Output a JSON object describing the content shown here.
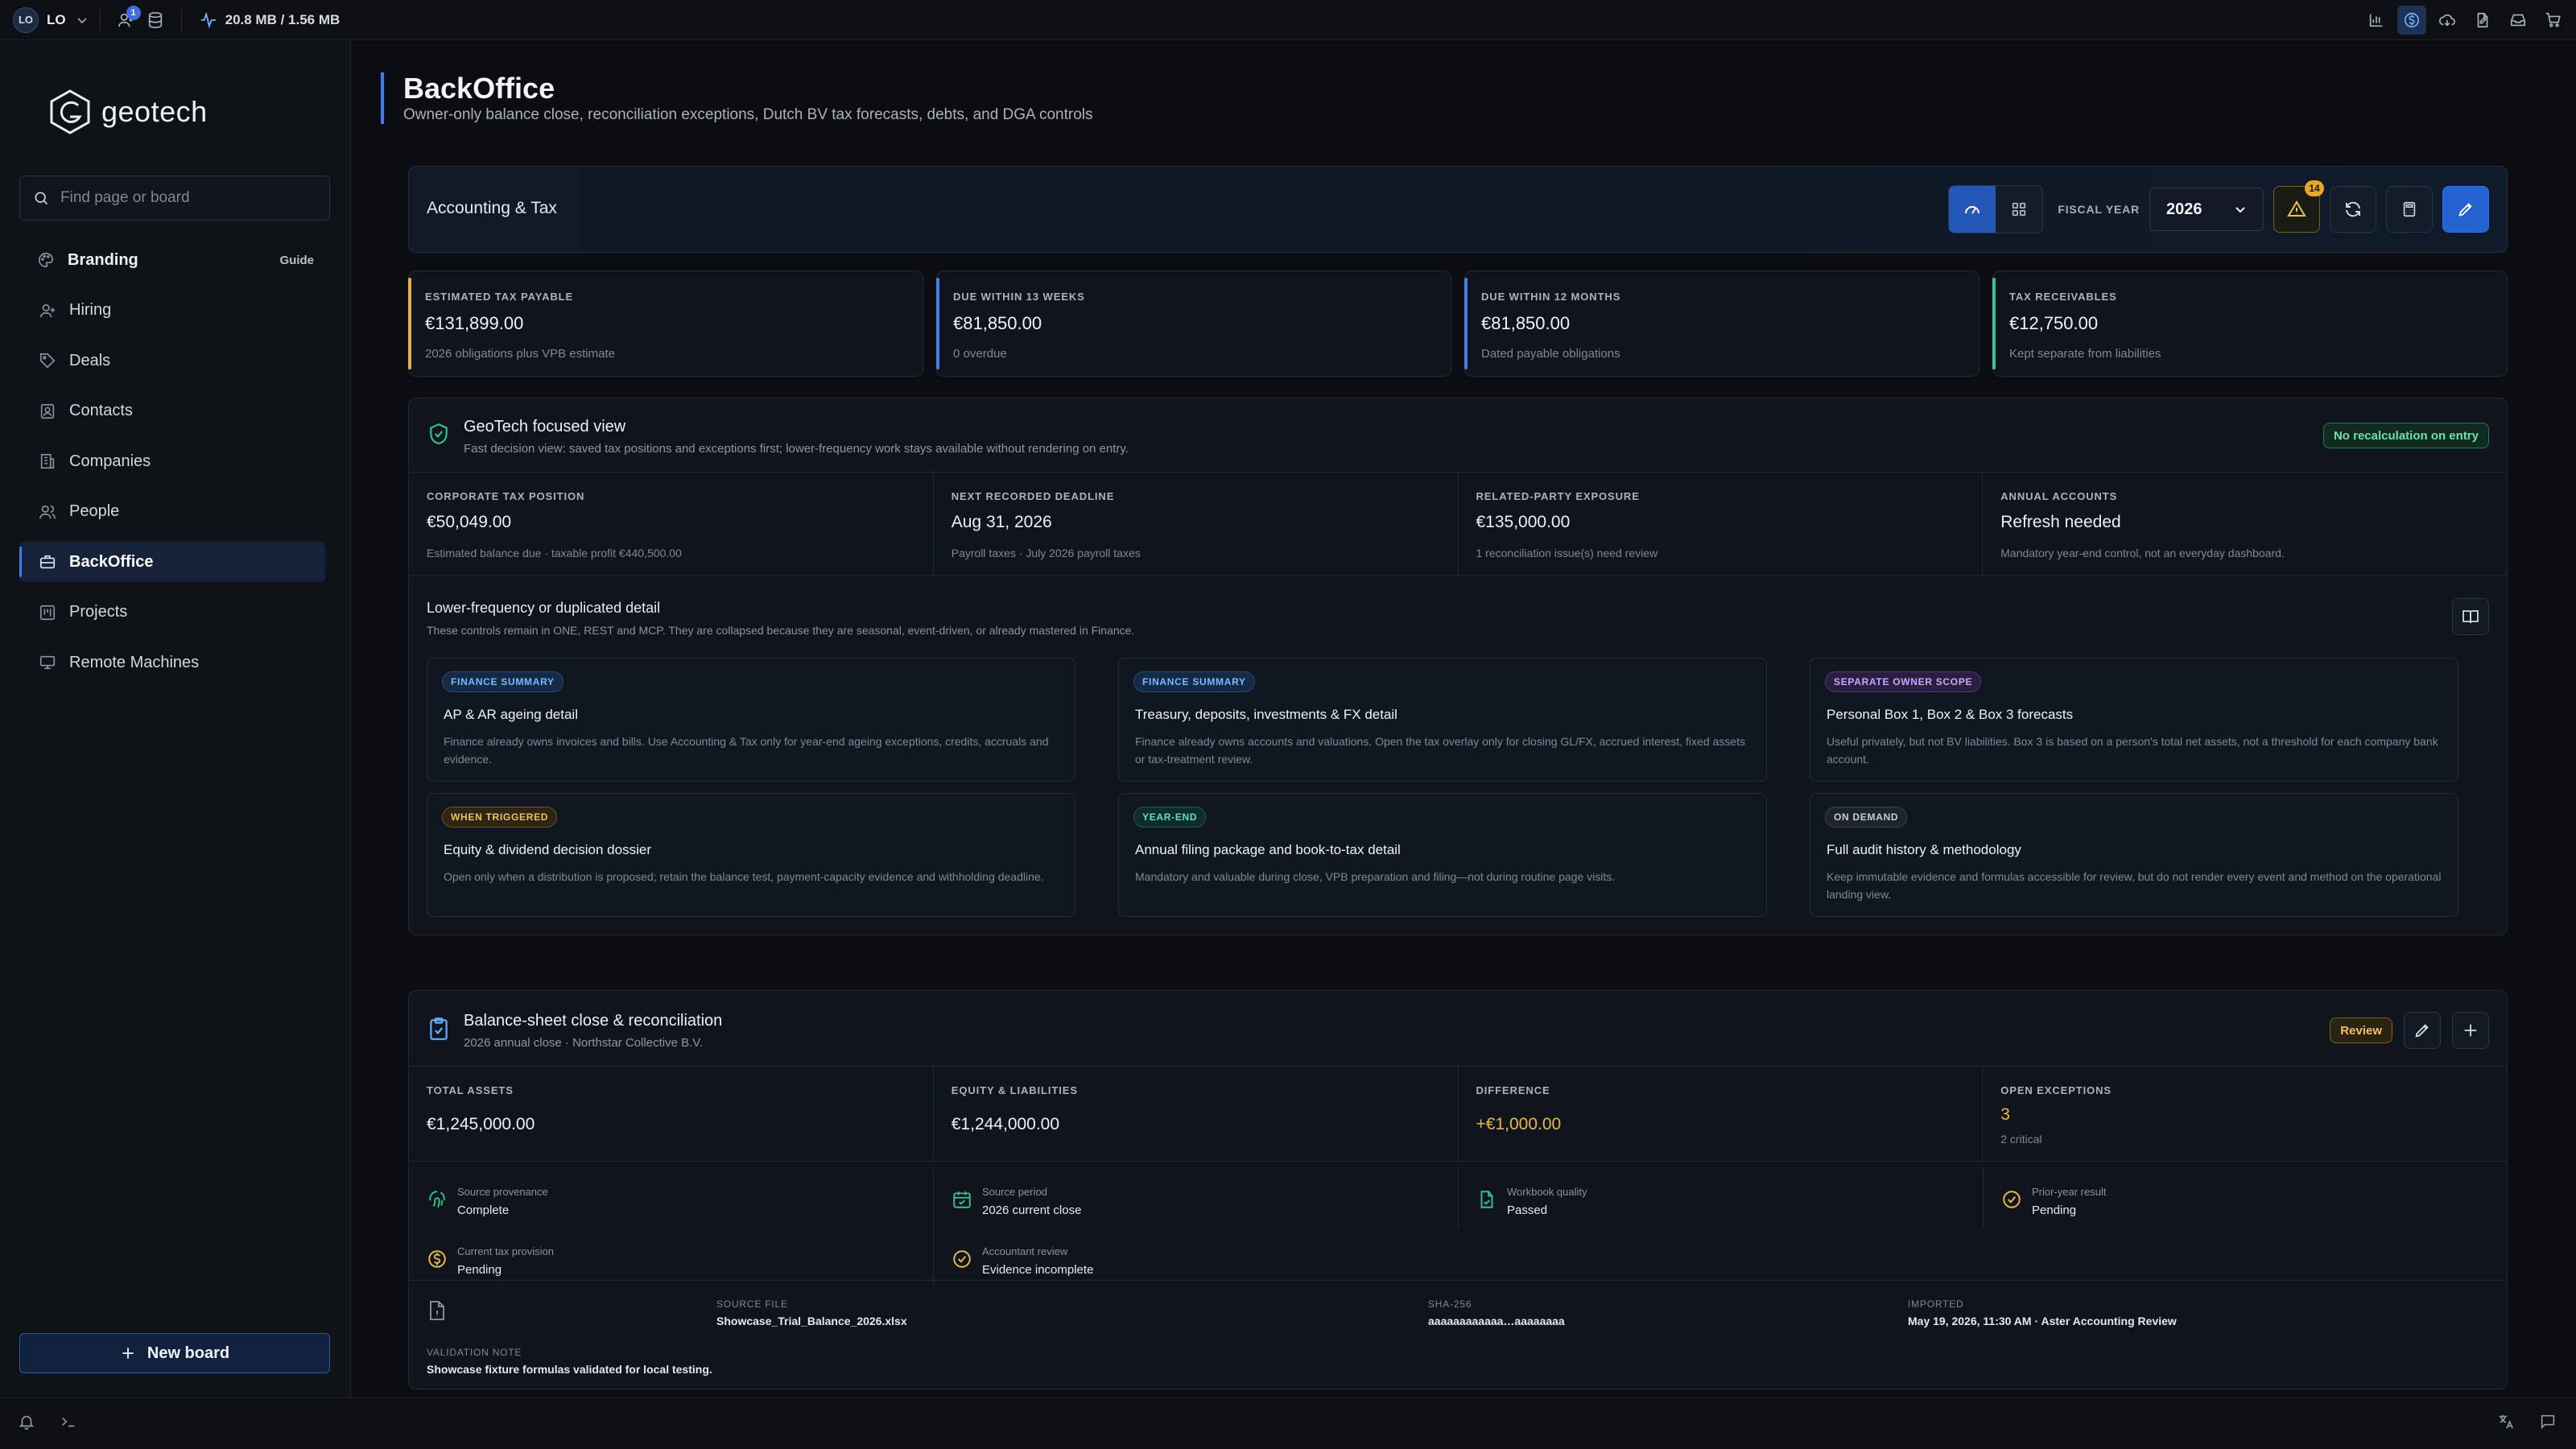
{
  "topbar": {
    "avatar_initials": "LO",
    "user_label": "LO",
    "notif_count": "1",
    "memory": "20.8 MB / 1.56 MB"
  },
  "sidebar": {
    "logo_text": "geotech",
    "search_placeholder": "Find page or board",
    "items": [
      {
        "label": "Branding",
        "extra": "Guide"
      },
      {
        "label": "Hiring"
      },
      {
        "label": "Deals"
      },
      {
        "label": "Contacts"
      },
      {
        "label": "Companies"
      },
      {
        "label": "People"
      },
      {
        "label": "BackOffice",
        "active": true
      },
      {
        "label": "Projects"
      },
      {
        "label": "Remote Machines"
      }
    ],
    "new_board": "New board"
  },
  "page": {
    "title": "BackOffice",
    "subtitle": "Owner-only balance close, reconciliation exceptions, Dutch BV tax forecasts, debts, and DGA controls"
  },
  "toolbar": {
    "section": "Accounting & Tax",
    "fiscal_year_label": "FISCAL YEAR",
    "fiscal_year": "2026",
    "warning_count": "14"
  },
  "kpis": [
    {
      "label": "ESTIMATED TAX PAYABLE",
      "value": "€131,899.00",
      "note": "2026 obligations plus VPB estimate"
    },
    {
      "label": "DUE WITHIN 13 WEEKS",
      "value": "€81,850.00",
      "note": "0 overdue"
    },
    {
      "label": "DUE WITHIN 12 MONTHS",
      "value": "€81,850.00",
      "note": "Dated payable obligations"
    },
    {
      "label": "TAX RECEIVABLES",
      "value": "€12,750.00",
      "note": "Kept separate from liabilities"
    }
  ],
  "focused": {
    "title": "GeoTech focused view",
    "subtitle": "Fast decision view: saved tax positions and exceptions first; lower-frequency work stays available without rendering on entry.",
    "pill": "No recalculation on entry",
    "metrics": [
      {
        "label": "CORPORATE TAX POSITION",
        "value": "€50,049.00",
        "note": "Estimated balance due · taxable profit €440,500.00"
      },
      {
        "label": "NEXT RECORDED DEADLINE",
        "value": "Aug 31, 2026",
        "note": "Payroll taxes · July 2026 payroll taxes"
      },
      {
        "label": "RELATED-PARTY EXPOSURE",
        "value": "€135,000.00",
        "note": "1 reconciliation issue(s) need review"
      },
      {
        "label": "ANNUAL ACCOUNTS",
        "value": "Refresh needed",
        "note": "Mandatory year-end control, not an everyday dashboard."
      }
    ],
    "lower_title": "Lower-frequency or duplicated detail",
    "lower_sub": "These controls remain in ONE, REST and MCP. They are collapsed because they are seasonal, event-driven, or already mastered in Finance.",
    "cards": [
      {
        "tag": "FINANCE SUMMARY",
        "title": "AP & AR ageing detail",
        "text": "Finance already owns invoices and bills. Use Accounting & Tax only for year-end ageing exceptions, credits, accruals and evidence."
      },
      {
        "tag": "FINANCE SUMMARY",
        "title": "Treasury, deposits, investments & FX detail",
        "text": "Finance already owns accounts and valuations. Open the tax overlay only for closing GL/FX, accrued interest, fixed assets or tax-treatment review."
      },
      {
        "tag": "SEPARATE OWNER SCOPE",
        "title": "Personal Box 1, Box 2 & Box 3 forecasts",
        "text": "Useful privately, but not BV liabilities. Box 3 is based on a person's total net assets, not a threshold for each company bank account."
      },
      {
        "tag": "WHEN TRIGGERED",
        "title": "Equity & dividend decision dossier",
        "text": "Open only when a distribution is proposed; retain the balance test, payment-capacity evidence and withholding deadline."
      },
      {
        "tag": "YEAR-END",
        "title": "Annual filing package and book-to-tax detail",
        "text": "Mandatory and valuable during close, VPB preparation and filing—not during routine page visits."
      },
      {
        "tag": "ON DEMAND",
        "title": "Full audit history & methodology",
        "text": "Keep immutable evidence and formulas accessible for review, but do not render every event and method on the operational landing view."
      }
    ]
  },
  "balance": {
    "title": "Balance-sheet close & reconciliation",
    "subtitle": "2026 annual close · Northstar Collective B.V.",
    "status": "Review",
    "metrics": [
      {
        "label": "TOTAL ASSETS",
        "value": "€1,245,000.00"
      },
      {
        "label": "EQUITY & LIABILITIES",
        "value": "€1,244,000.00"
      },
      {
        "label": "DIFFERENCE",
        "value": "+€1,000.00"
      },
      {
        "label": "OPEN EXCEPTIONS",
        "value": "3",
        "note": "2 critical"
      }
    ],
    "checks": [
      {
        "label": "Source provenance",
        "value": "Complete"
      },
      {
        "label": "Source period",
        "value": "2026 current close"
      },
      {
        "label": "Workbook quality",
        "value": "Passed"
      },
      {
        "label": "Prior-year result",
        "value": "Pending"
      },
      {
        "label": "Current tax provision",
        "value": "Pending"
      },
      {
        "label": "Accountant review",
        "value": "Evidence incomplete"
      }
    ],
    "source": {
      "file_label": "SOURCE FILE",
      "file": "Showcase_Trial_Balance_2026.xlsx",
      "sha_label": "SHA-256",
      "sha": "aaaaaaaaaaaa…aaaaaaaa",
      "imported_label": "IMPORTED",
      "imported": "May 19, 2026, 11:30 AM · Aster Accounting Review",
      "note_label": "VALIDATION NOTE",
      "note": "Showcase fixture formulas validated for local testing."
    }
  },
  "colors": {
    "accent": "#3c7bf0",
    "warning": "#e8b848",
    "success": "#35c48d"
  }
}
